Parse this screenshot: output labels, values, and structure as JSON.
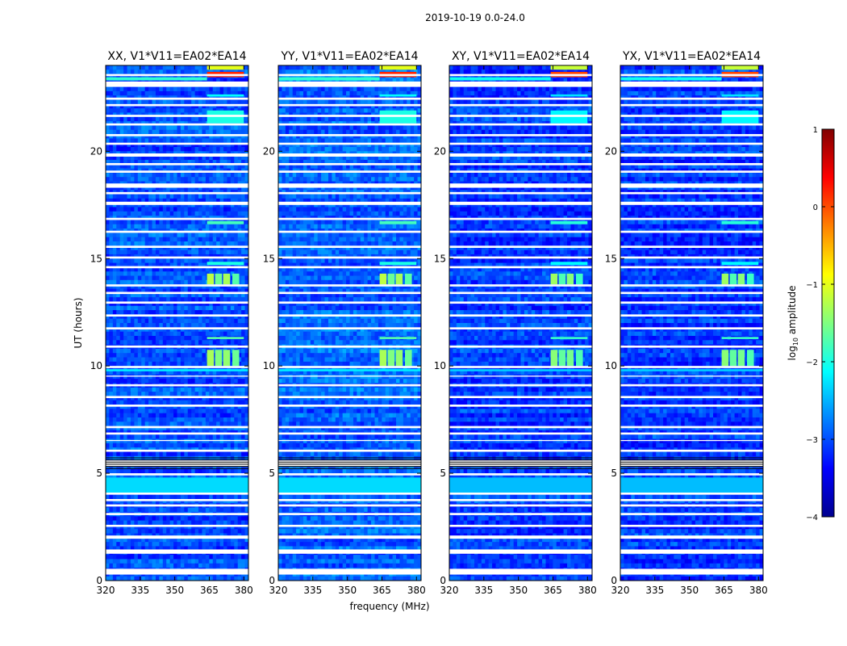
{
  "chart_data": {
    "type": "heatmap",
    "title": "2019-10-19 0.0-24.0",
    "xlabel": "frequency (MHz)",
    "ylabel": "UT (hours)",
    "xlim": [
      320,
      382
    ],
    "ylim": [
      0,
      24
    ],
    "x_ticks": [
      320,
      335,
      350,
      365,
      380
    ],
    "x_tick_labels": [
      "320",
      "335",
      "350",
      "365",
      "380"
    ],
    "y_ticks": [
      0,
      5,
      10,
      15,
      20
    ],
    "y_tick_labels": [
      "0",
      "5",
      "10",
      "15",
      "20"
    ],
    "colorbar": {
      "label_prefix": "log",
      "label_sub": "10",
      "label_suffix": " amplitude",
      "range": [
        -4,
        1
      ],
      "ticks": [
        1,
        0,
        -1,
        -2,
        -3,
        -4
      ],
      "tick_labels": [
        "1",
        "0",
        "−1",
        "−2",
        "−3",
        "−4"
      ],
      "colors": [
        "#00008f",
        "#0000ff",
        "#0080ff",
        "#00ffff",
        "#80ff80",
        "#ffff00",
        "#ff8000",
        "#ff0000",
        "#800000"
      ]
    },
    "panels": [
      {
        "title": "XX, V1*V11=EA02*EA14",
        "background_level": -3.0
      },
      {
        "title": "YY, V1*V11=EA02*EA14",
        "background_level": -2.9
      },
      {
        "title": "XY, V1*V11=EA02*EA14",
        "background_level": -3.1
      },
      {
        "title": "YX, V1*V11=EA02*EA14",
        "background_level": -3.1
      }
    ],
    "flagged_bands": [
      [
        0.28,
        0.55
      ],
      [
        1.25,
        1.45
      ],
      [
        1.95,
        2.1
      ],
      [
        2.5,
        2.6
      ],
      [
        3.05,
        3.15
      ],
      [
        3.45,
        3.55
      ],
      [
        3.7,
        3.8
      ],
      [
        4.0,
        4.1
      ],
      [
        4.9,
        5.0
      ],
      [
        5.3,
        5.6
      ],
      [
        6.0,
        6.1
      ],
      [
        6.5,
        6.55
      ],
      [
        6.8,
        6.9
      ],
      [
        7.1,
        7.2
      ],
      [
        8.1,
        8.2
      ],
      [
        8.5,
        8.6
      ],
      [
        9.05,
        9.15
      ],
      [
        9.5,
        9.55
      ],
      [
        9.9,
        10.0
      ],
      [
        10.85,
        10.95
      ],
      [
        11.7,
        11.8
      ],
      [
        12.3,
        12.4
      ],
      [
        12.9,
        13.0
      ],
      [
        13.35,
        13.45
      ],
      [
        13.7,
        13.8
      ],
      [
        14.55,
        14.65
      ],
      [
        15.0,
        15.1
      ],
      [
        15.5,
        15.6
      ],
      [
        16.2,
        16.3
      ],
      [
        16.8,
        16.9
      ],
      [
        17.5,
        17.65
      ],
      [
        18.0,
        18.1
      ],
      [
        18.3,
        18.5
      ],
      [
        19.0,
        19.1
      ],
      [
        19.35,
        19.45
      ],
      [
        19.75,
        19.9
      ],
      [
        20.3,
        20.4
      ],
      [
        20.7,
        20.8
      ],
      [
        21.2,
        21.3
      ],
      [
        21.6,
        21.7
      ],
      [
        22.1,
        22.2
      ],
      [
        22.4,
        22.5
      ],
      [
        23.0,
        23.25
      ],
      [
        23.5,
        23.6
      ]
    ],
    "rfi_features": [
      {
        "f0": 364,
        "f1": 367,
        "t0": 10.0,
        "t1": 10.75,
        "level": -1.3
      },
      {
        "f0": 367.5,
        "f1": 370.5,
        "t0": 10.0,
        "t1": 10.75,
        "level": -1.5
      },
      {
        "f0": 371,
        "f1": 374,
        "t0": 10.0,
        "t1": 10.75,
        "level": -1.4
      },
      {
        "f0": 375,
        "f1": 378,
        "t0": 10.0,
        "t1": 10.75,
        "level": -1.6
      },
      {
        "f0": 364,
        "f1": 367,
        "t0": 13.8,
        "t1": 14.3,
        "level": -1.2
      },
      {
        "f0": 367.5,
        "f1": 370.5,
        "t0": 13.8,
        "t1": 14.3,
        "level": -1.6
      },
      {
        "f0": 371,
        "f1": 374,
        "t0": 13.8,
        "t1": 14.3,
        "level": -1.3
      },
      {
        "f0": 375,
        "f1": 378,
        "t0": 13.8,
        "t1": 14.3,
        "level": -1.7
      },
      {
        "f0": 364,
        "f1": 380,
        "t0": 23.45,
        "t1": 23.7,
        "level": 0.2
      },
      {
        "f0": 320,
        "f1": 364,
        "t0": 23.3,
        "t1": 23.45,
        "level": -1.9
      },
      {
        "f0": 364,
        "f1": 380,
        "t0": 23.8,
        "t1": 24.0,
        "level": -1.0
      },
      {
        "f0": 364,
        "f1": 380,
        "t0": 16.6,
        "t1": 16.75,
        "level": -1.8
      },
      {
        "f0": 364,
        "f1": 380,
        "t0": 11.25,
        "t1": 11.35,
        "level": -1.7
      },
      {
        "f0": 364,
        "f1": 380,
        "t0": 14.7,
        "t1": 14.85,
        "level": -2.0
      },
      {
        "f0": 364,
        "f1": 380,
        "t0": 22.55,
        "t1": 22.65,
        "level": -2.1
      },
      {
        "f0": 364,
        "f1": 380,
        "t0": 21.3,
        "t1": 21.9,
        "level": -2.0
      },
      {
        "f0": 320,
        "f1": 382,
        "t0": 4.1,
        "t1": 4.8,
        "level": -2.3
      },
      {
        "f0": 320,
        "f1": 382,
        "t0": 9.75,
        "t1": 9.85,
        "level": -2.2
      }
    ]
  }
}
